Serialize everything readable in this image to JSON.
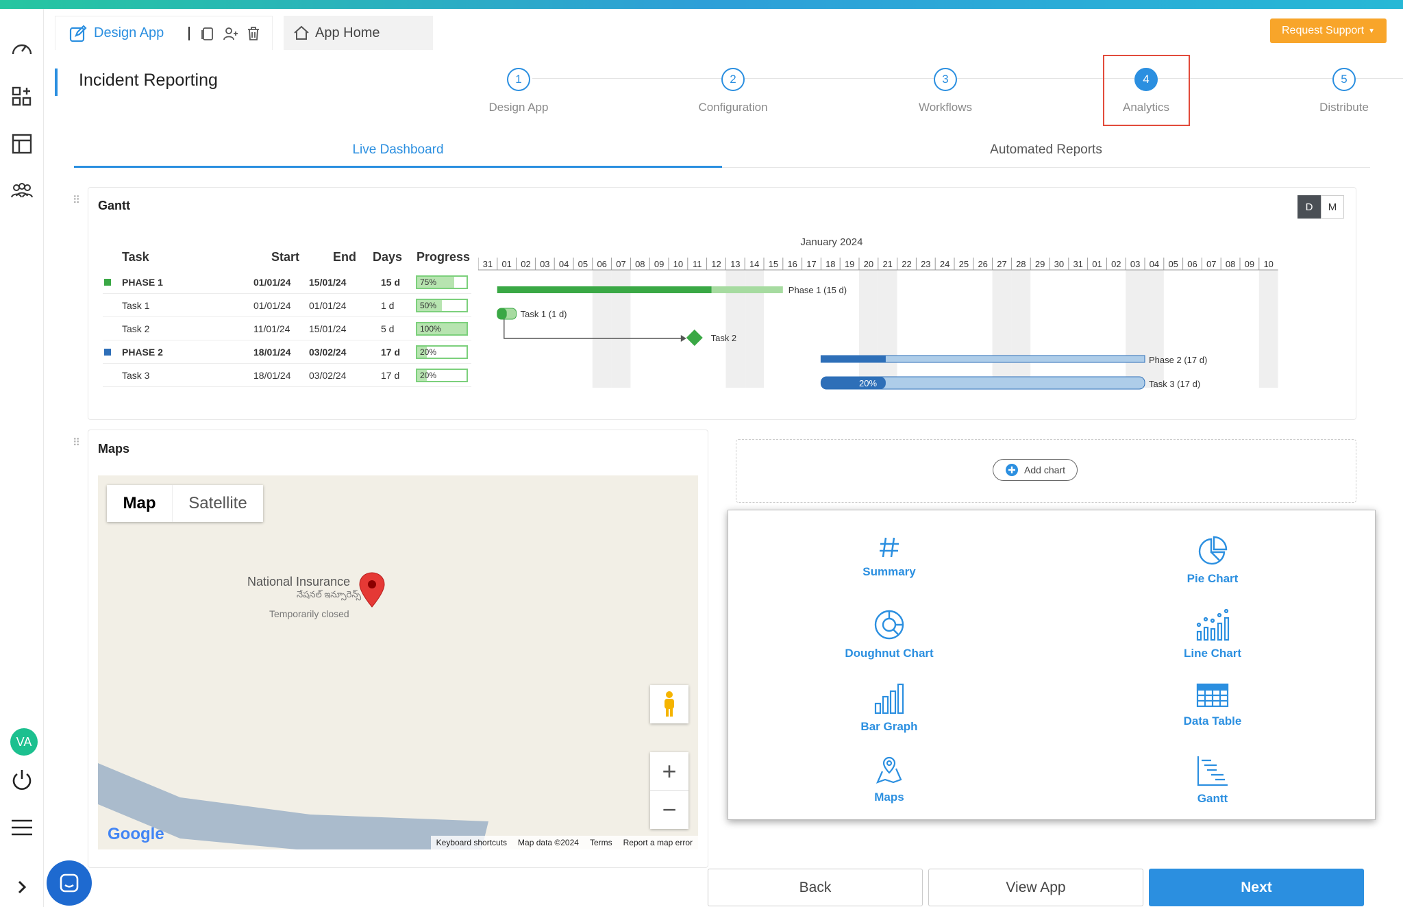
{
  "header": {
    "design_label": "Design App",
    "home_label": "App Home",
    "support_label": "Request Support"
  },
  "page": {
    "title": "Incident Reporting"
  },
  "steps": [
    {
      "num": "1",
      "label": "Design App"
    },
    {
      "num": "2",
      "label": "Configuration"
    },
    {
      "num": "3",
      "label": "Workflows"
    },
    {
      "num": "4",
      "label": "Analytics"
    },
    {
      "num": "5",
      "label": "Distribute"
    }
  ],
  "tabs": {
    "live": "Live Dashboard",
    "reports": "Automated Reports"
  },
  "gantt": {
    "title": "Gantt",
    "toggle_d": "D",
    "toggle_m": "M",
    "month": "January 2024",
    "headers": {
      "task": "Task",
      "start": "Start",
      "end": "End",
      "days": "Days",
      "progress": "Progress"
    },
    "days": [
      "31",
      "01",
      "02",
      "03",
      "04",
      "05",
      "06",
      "07",
      "08",
      "09",
      "10",
      "11",
      "12",
      "13",
      "14",
      "15",
      "16",
      "17",
      "18",
      "19",
      "20",
      "21",
      "22",
      "23",
      "24",
      "25",
      "26",
      "27",
      "28",
      "29",
      "30",
      "31",
      "01",
      "02",
      "03",
      "04",
      "05",
      "06",
      "07",
      "08",
      "09",
      "10"
    ],
    "rows": [
      {
        "task": "PHASE 1",
        "start": "01/01/24",
        "end": "15/01/24",
        "days": "15 d",
        "progress": "75%",
        "pct": 75,
        "bold": true,
        "color": "#3aa845"
      },
      {
        "task": "Task 1",
        "start": "01/01/24",
        "end": "01/01/24",
        "days": "1 d",
        "progress": "50%",
        "pct": 50,
        "bold": false
      },
      {
        "task": "Task 2",
        "start": "11/01/24",
        "end": "15/01/24",
        "days": "5 d",
        "progress": "100%",
        "pct": 100,
        "bold": false
      },
      {
        "task": "PHASE 2",
        "start": "18/01/24",
        "end": "03/02/24",
        "days": "17 d",
        "progress": "20%",
        "pct": 20,
        "bold": true,
        "color": "#2e6fb8"
      },
      {
        "task": "Task 3",
        "start": "18/01/24",
        "end": "03/02/24",
        "days": "17 d",
        "progress": "20%",
        "pct": 20,
        "bold": false
      }
    ],
    "bar_labels": {
      "phase1": "Phase 1 (15 d)",
      "task1": "Task 1 (1 d)",
      "task2": "Task 2",
      "phase2": "Phase 2 (17 d)",
      "task3": "Task 3 (17 d)",
      "task3_pct": "20%"
    }
  },
  "maps": {
    "title": "Maps",
    "tab_map": "Map",
    "tab_sat": "Satellite",
    "place": "National Insurance",
    "place_local": "నేషనల్ ఇన్సూరెన్స్",
    "place_status": "Temporarily closed",
    "logo": "Google",
    "foot": [
      "Keyboard shortcuts",
      "Map data ©2024",
      "Terms",
      "Report a map error"
    ]
  },
  "add_chart": "Add chart",
  "charts": {
    "summary": "Summary",
    "pie": "Pie Chart",
    "doughnut": "Doughnut Chart",
    "line": "Line Chart",
    "bar": "Bar Graph",
    "table": "Data Table",
    "maps": "Maps",
    "gantt": "Gantt"
  },
  "footer": {
    "back": "Back",
    "view": "View App",
    "next": "Next"
  },
  "user": {
    "initials": "VA"
  },
  "colors": {
    "accent": "#2b8fe0",
    "support": "#f8a52a",
    "highlight": "#e24b3b",
    "green": "#3aa845",
    "blue": "#2e6fb8"
  }
}
